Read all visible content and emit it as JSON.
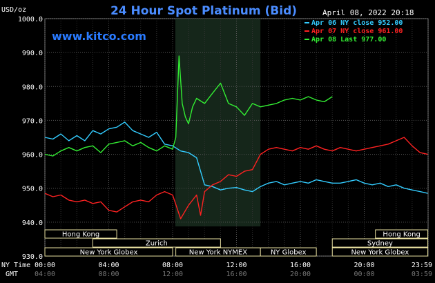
{
  "title": "24 Hour Spot Platinum (Bid)",
  "timestamp": "April 08, 2022 20:18",
  "watermark": "www.kitco.com",
  "chart_data": {
    "type": "line",
    "ylabel": "USD/oz",
    "ylim": [
      930,
      1000
    ],
    "y_ticks": [
      "1000.0",
      "990.0",
      "980.0",
      "970.0",
      "960.0",
      "950.0",
      "940.0",
      "930.0"
    ],
    "y_tick_values": [
      1000,
      990,
      980,
      970,
      960,
      950,
      940,
      930
    ],
    "xlim": [
      0,
      24
    ],
    "x_label_ny": "NY Time",
    "x_label_gmt": "GMT",
    "x_ticks_ny": [
      "00:00",
      "04:00",
      "08:00",
      "12:00",
      "16:00",
      "20:00",
      "23:59"
    ],
    "x_ticks_gmt": [
      "04:00",
      "08:00",
      "12:00",
      "16:00",
      "20:00",
      "00:00",
      "03:59"
    ],
    "x_tick_hours": [
      0,
      4,
      8,
      12,
      16,
      20,
      23.98
    ],
    "grid": true,
    "legend_position": "top-right",
    "highlight_hours": [
      8.17,
      13.5
    ],
    "series": [
      {
        "name": "Apr 06 NY close 952.00",
        "color": "#33ccff",
        "x": [
          0,
          0.5,
          1,
          1.5,
          2,
          2.5,
          3,
          3.5,
          4,
          4.5,
          5,
          5.5,
          6,
          6.5,
          7,
          7.5,
          8,
          8.5,
          9,
          9.5,
          9.75,
          10,
          10.5,
          11,
          11.5,
          12,
          12.5,
          13,
          13.5,
          14,
          14.5,
          15,
          15.5,
          16,
          16.5,
          17,
          17.5,
          18,
          18.5,
          19,
          19.5,
          20,
          20.5,
          21,
          21.5,
          22,
          22.5,
          23,
          23.5,
          23.98
        ],
        "y": [
          965,
          964.5,
          966,
          964,
          965.5,
          964,
          967,
          966,
          967.5,
          968,
          969.5,
          967,
          966,
          965,
          966.5,
          963,
          962.5,
          961,
          960.5,
          959,
          955,
          951,
          950.5,
          949.5,
          950,
          950.2,
          949.5,
          949,
          950.5,
          951.5,
          952,
          951,
          951.5,
          952,
          951.5,
          952.5,
          952,
          951.5,
          951.5,
          952,
          952.5,
          951.5,
          951,
          951.5,
          950.5,
          951,
          950,
          949.5,
          949,
          948.5
        ]
      },
      {
        "name": "Apr 07 NY close 961.00",
        "color": "#ff2222",
        "x": [
          0,
          0.5,
          1,
          1.5,
          2,
          2.5,
          3,
          3.5,
          4,
          4.5,
          5,
          5.5,
          6,
          6.5,
          7,
          7.5,
          8,
          8.5,
          9,
          9.5,
          9.75,
          10,
          10.5,
          11,
          11.5,
          12,
          12.5,
          13,
          13.5,
          14,
          14.5,
          15,
          15.5,
          16,
          16.5,
          17,
          17.5,
          18,
          18.5,
          19,
          19.5,
          20,
          20.5,
          21,
          21.5,
          22,
          22.5,
          23,
          23.5,
          23.98
        ],
        "y": [
          948.5,
          947.5,
          948,
          946.5,
          946,
          946.5,
          945.5,
          946,
          943.5,
          943,
          944.5,
          946,
          946.5,
          946,
          948,
          949,
          948,
          941,
          945,
          948,
          942,
          949,
          951,
          952,
          954,
          953.5,
          955,
          955.5,
          960,
          961.5,
          962,
          961.5,
          961,
          962,
          961.5,
          962.5,
          961.5,
          961,
          962,
          961.5,
          961,
          961.5,
          962,
          962.5,
          963,
          964,
          965,
          962.5,
          960.5,
          960
        ]
      },
      {
        "name": "Apr 08 Last 977.00",
        "color": "#33ee33",
        "x": [
          0,
          0.5,
          1,
          1.5,
          2,
          2.5,
          3,
          3.5,
          4,
          4.5,
          5,
          5.5,
          6,
          6.5,
          7,
          7.5,
          8,
          8.2,
          8.4,
          8.6,
          8.8,
          9,
          9.25,
          9.5,
          10,
          10.5,
          11,
          11.5,
          12,
          12.5,
          13,
          13.5,
          14,
          14.5,
          15,
          15.5,
          16,
          16.5,
          17,
          17.5,
          18
        ],
        "y": [
          960,
          959.5,
          961,
          962,
          961,
          962,
          962.5,
          960.5,
          963,
          963.5,
          964,
          962.5,
          963.5,
          962,
          961,
          962.5,
          961.5,
          965,
          989,
          975,
          971,
          969,
          974,
          976.5,
          975,
          978,
          981,
          975,
          974,
          971.5,
          975,
          974,
          974.5,
          975,
          976,
          976.5,
          976,
          977,
          976,
          975.5,
          977
        ]
      }
    ]
  },
  "sessions": {
    "row1": [
      {
        "label": "Hong Kong",
        "start": 0,
        "end": 4.5
      },
      {
        "label": "Hong Kong",
        "start": 20.7,
        "end": 23.98
      }
    ],
    "row2": [
      {
        "label": "Zurich",
        "start": 3,
        "end": 11
      },
      {
        "label": "Sydney",
        "start": 18,
        "end": 23.98
      }
    ],
    "row3": [
      {
        "label": "New York Globex",
        "start": 0,
        "end": 8
      },
      {
        "label": "New York NYMEX",
        "start": 8.2,
        "end": 13.5
      },
      {
        "label": "NY Globex",
        "start": 13.5,
        "end": 17
      },
      {
        "label": "New York Globex",
        "start": 18,
        "end": 23.98
      }
    ]
  }
}
